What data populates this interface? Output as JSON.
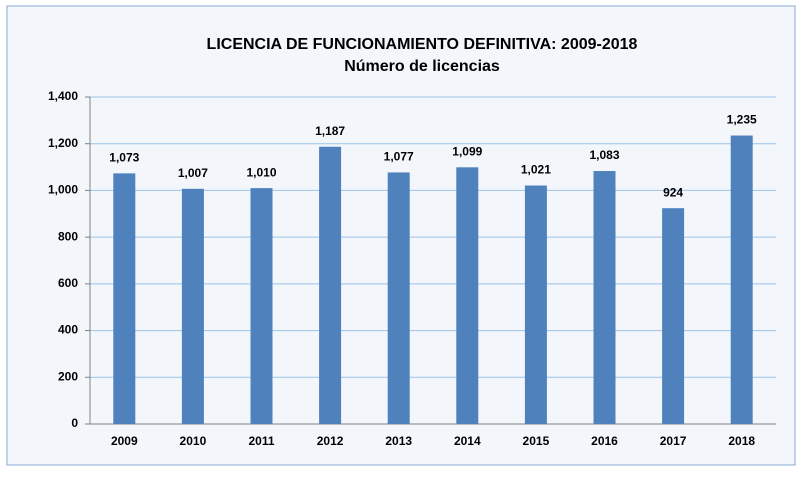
{
  "chart_data": {
    "type": "bar",
    "title": "LICENCIA DE FUNCIONAMIENTO DEFINITIVA: 2009-2018",
    "subtitle": "Número de licencias",
    "categories": [
      "2009",
      "2010",
      "2011",
      "2012",
      "2013",
      "2014",
      "2015",
      "2016",
      "2017",
      "2018"
    ],
    "values": [
      1073,
      1007,
      1010,
      1187,
      1077,
      1099,
      1021,
      1083,
      924,
      1235
    ],
    "value_labels": [
      "1,073",
      "1,007",
      "1,010",
      "1,187",
      "1,077",
      "1,099",
      "1,021",
      "1,083",
      "924",
      "1,235"
    ],
    "color": "#4f81bd",
    "ylim": [
      0,
      1400
    ],
    "yticks": [
      0,
      200,
      400,
      600,
      800,
      {
        "value": 1000,
        "label": "1,000"
      },
      {
        "value": 1200,
        "label": "1,200"
      },
      {
        "value": 1400,
        "label": "1,400"
      }
    ],
    "grid": true
  }
}
